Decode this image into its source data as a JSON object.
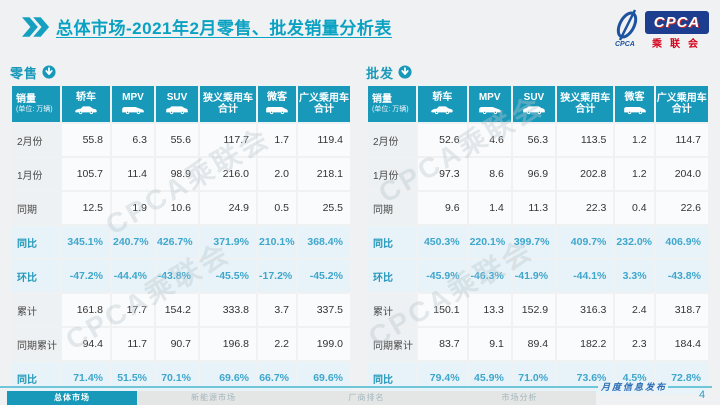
{
  "header": {
    "title": "总体市场-2021年2月零售、批发销量分析表",
    "logo": {
      "acronym": "CPCA",
      "emblem_caption": "CPCA",
      "cn_name": "乘联会"
    }
  },
  "watermark": "CPCA乘联会",
  "table_header": {
    "first_col": {
      "title": "销量",
      "unit": "(单位: 万辆)"
    },
    "cols": [
      {
        "title": "轿车",
        "icon": "sedan-icon"
      },
      {
        "title": "MPV",
        "icon": "mpv-icon"
      },
      {
        "title": "SUV",
        "icon": "suv-icon"
      },
      {
        "title": "狭义乘用车",
        "line2": "合计"
      },
      {
        "title": "微客",
        "icon": "van-icon"
      },
      {
        "title": "广义乘用车",
        "line2": "合计"
      }
    ]
  },
  "chart_data": [
    {
      "type": "table",
      "title": "零售",
      "unit_note": "销量 (单位: 万辆)",
      "columns": [
        "轿车",
        "MPV",
        "SUV",
        "狭义乘用车合计",
        "微客",
        "广义乘用车合计"
      ],
      "rows": [
        {
          "label": "2月份",
          "values": [
            "55.8",
            "6.3",
            "55.6",
            "117.7",
            "1.7",
            "119.4"
          ]
        },
        {
          "label": "1月份",
          "values": [
            "105.7",
            "11.4",
            "98.9",
            "216.0",
            "2.0",
            "218.1"
          ]
        },
        {
          "label": "同期",
          "values": [
            "12.5",
            "1.9",
            "10.6",
            "24.9",
            "0.5",
            "25.5"
          ]
        },
        {
          "label": "同比",
          "ratio": true,
          "values": [
            "345.1%",
            "240.7%",
            "426.7%",
            "371.9%",
            "210.1%",
            "368.4%"
          ]
        },
        {
          "label": "环比",
          "ratio": true,
          "values": [
            "-47.2%",
            "-44.4%",
            "-43.8%",
            "-45.5%",
            "-17.2%",
            "-45.2%"
          ]
        },
        {
          "label": "累计",
          "values": [
            "161.8",
            "17.7",
            "154.2",
            "333.8",
            "3.7",
            "337.5"
          ]
        },
        {
          "label": "同期累计",
          "values": [
            "94.4",
            "11.7",
            "90.7",
            "196.8",
            "2.2",
            "199.0"
          ]
        },
        {
          "label": "同比",
          "ratio": true,
          "values": [
            "71.4%",
            "51.5%",
            "70.1%",
            "69.6%",
            "66.7%",
            "69.6%"
          ]
        }
      ]
    },
    {
      "type": "table",
      "title": "批发",
      "unit_note": "销量 (单位: 万辆)",
      "columns": [
        "轿车",
        "MPV",
        "SUV",
        "狭义乘用车合计",
        "微客",
        "广义乘用车合计"
      ],
      "rows": [
        {
          "label": "2月份",
          "values": [
            "52.6",
            "4.6",
            "56.3",
            "113.5",
            "1.2",
            "114.7"
          ]
        },
        {
          "label": "1月份",
          "values": [
            "97.3",
            "8.6",
            "96.9",
            "202.8",
            "1.2",
            "204.0"
          ]
        },
        {
          "label": "同期",
          "values": [
            "9.6",
            "1.4",
            "11.3",
            "22.3",
            "0.4",
            "22.6"
          ]
        },
        {
          "label": "同比",
          "ratio": true,
          "values": [
            "450.3%",
            "220.1%",
            "399.7%",
            "409.7%",
            "232.0%",
            "406.9%"
          ]
        },
        {
          "label": "环比",
          "ratio": true,
          "values": [
            "-45.9%",
            "-46.3%",
            "-41.9%",
            "-44.1%",
            "3.3%",
            "-43.8%"
          ]
        },
        {
          "label": "累计",
          "values": [
            "150.1",
            "13.3",
            "152.9",
            "316.3",
            "2.4",
            "318.7"
          ]
        },
        {
          "label": "同期累计",
          "values": [
            "83.7",
            "9.1",
            "89.4",
            "182.2",
            "2.3",
            "184.4"
          ]
        },
        {
          "label": "同比",
          "ratio": true,
          "values": [
            "79.4%",
            "45.9%",
            "71.0%",
            "73.6%",
            "4.5%",
            "72.8%"
          ]
        }
      ]
    }
  ],
  "footer": {
    "tabs": [
      {
        "label": "总体市场",
        "active": true
      },
      {
        "label": "新能源市场",
        "active": false
      },
      {
        "label": "厂商排名",
        "active": false
      },
      {
        "label": "市场分析",
        "active": false
      }
    ],
    "caption": "月度信息发布",
    "page_number": "4"
  },
  "colors": {
    "accent_teal": "#1999ba",
    "title_cyan": "#0aa2c3",
    "ratio_blue": "#3fa6cc",
    "ratio_row_bg": "#e7f3f8",
    "logo_navy": "#1d3d8f",
    "logo_red": "#d5001b"
  }
}
